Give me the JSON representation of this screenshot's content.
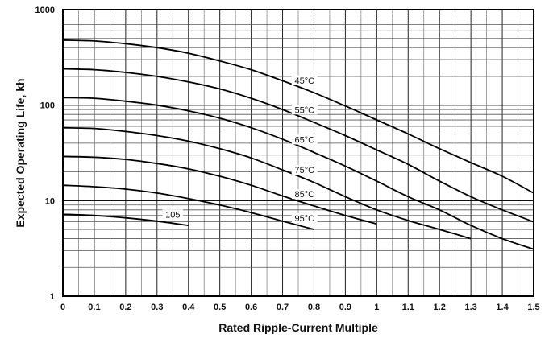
{
  "chart_data": {
    "type": "line",
    "title": "",
    "xlabel": "Rated Ripple-Current Multiple",
    "ylabel": "Expected Operating Life, kh",
    "xlim": [
      0,
      1.5
    ],
    "ylim": [
      1,
      1000
    ],
    "y_scale": "log",
    "grid": true,
    "x_ticks": [
      "0",
      "0.1",
      "0.2",
      "0.3",
      "0.4",
      "0.5",
      "0.6",
      "0.7",
      "0.8",
      "0.9",
      "1",
      "1.1",
      "1.2",
      "1.3",
      "1.4",
      "1.5"
    ],
    "y_ticks": [
      "1",
      "10",
      "100",
      "1000"
    ],
    "series": [
      {
        "name": "45°C",
        "x": [
          0,
          0.1,
          0.2,
          0.3,
          0.4,
          0.5,
          0.6,
          0.7,
          0.8,
          0.9,
          1.0,
          1.1,
          1.2,
          1.3,
          1.4,
          1.5
        ],
        "y": [
          480,
          470,
          440,
          400,
          350,
          290,
          235,
          180,
          135,
          98,
          70,
          50,
          35,
          25,
          18,
          12
        ]
      },
      {
        "name": "55°C",
        "x": [
          0,
          0.1,
          0.2,
          0.3,
          0.4,
          0.5,
          0.6,
          0.7,
          0.8,
          0.9,
          1.0,
          1.1,
          1.2,
          1.3,
          1.4,
          1.5
        ],
        "y": [
          240,
          235,
          220,
          200,
          175,
          148,
          118,
          90,
          66,
          48,
          34,
          24,
          16,
          11,
          8,
          6
        ]
      },
      {
        "name": "65°C",
        "x": [
          0,
          0.1,
          0.2,
          0.3,
          0.4,
          0.5,
          0.6,
          0.7,
          0.8,
          0.9,
          1.0,
          1.1,
          1.2,
          1.3,
          1.4,
          1.5
        ],
        "y": [
          120,
          118,
          110,
          100,
          87,
          73,
          58,
          44,
          32,
          23,
          16,
          11,
          8,
          5.5,
          4,
          3.1
        ]
      },
      {
        "name": "75°C",
        "x": [
          0,
          0.1,
          0.2,
          0.3,
          0.4,
          0.5,
          0.6,
          0.7,
          0.8,
          0.9,
          1.0,
          1.1,
          1.2,
          1.3
        ],
        "y": [
          58,
          57,
          53,
          48,
          42,
          35,
          28,
          21,
          15.5,
          11,
          8,
          6.2,
          5,
          4
        ]
      },
      {
        "name": "85°C",
        "x": [
          0,
          0.1,
          0.2,
          0.3,
          0.4,
          0.5,
          0.6,
          0.7,
          0.8,
          0.9,
          1.0
        ],
        "y": [
          29,
          28.5,
          27,
          24.5,
          21.5,
          18,
          14.5,
          11.2,
          8.8,
          7,
          5.7
        ]
      },
      {
        "name": "95°C",
        "x": [
          0,
          0.1,
          0.2,
          0.3,
          0.4,
          0.5,
          0.6,
          0.7,
          0.8
        ],
        "y": [
          14.5,
          14,
          13.2,
          12,
          10.5,
          9,
          7.5,
          6.1,
          5
        ]
      },
      {
        "name": "105",
        "x": [
          0,
          0.1,
          0.2,
          0.3,
          0.4
        ],
        "y": [
          7.2,
          7,
          6.6,
          6.1,
          5.5
        ]
      }
    ]
  }
}
